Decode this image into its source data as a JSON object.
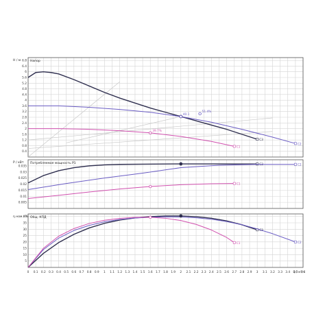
{
  "colors": {
    "c1": "#d04fae",
    "c2": "#6a5cc4",
    "c3": "#2f2f4f",
    "aux": "#c8c8c8",
    "text": "#333333"
  },
  "chart_data": [
    {
      "type": "line",
      "panel": "head",
      "title": "Напор",
      "ylabel": "Н / м",
      "xlim": [
        0,
        3.6
      ],
      "ylim": [
        0,
        7
      ],
      "yticks": [
        0.4,
        0.8,
        1.2,
        1.6,
        2,
        2.4,
        2.8,
        3.2,
        3.6,
        4,
        4.4,
        4.8,
        5.2,
        5.6,
        6,
        6.4,
        6.8
      ],
      "grid": true,
      "series": [
        {
          "name": "C3",
          "color": "#2f2f4f",
          "x": [
            0,
            0.1,
            0.2,
            0.3,
            0.4,
            0.6,
            0.8,
            1.0,
            1.2,
            1.4,
            1.6,
            1.8,
            2.0,
            2.2,
            2.4,
            2.6,
            2.8,
            3.0
          ],
          "y": [
            5.6,
            5.95,
            6.0,
            5.95,
            5.85,
            5.45,
            5.0,
            4.55,
            4.15,
            3.8,
            3.45,
            3.15,
            2.85,
            2.55,
            2.25,
            1.95,
            1.6,
            1.25
          ]
        },
        {
          "name": "C2",
          "color": "#6a5cc4",
          "x": [
            0,
            0.4,
            0.8,
            1.2,
            1.6,
            2.0,
            2.4,
            2.8,
            3.2,
            3.5
          ],
          "y": [
            3.6,
            3.6,
            3.5,
            3.35,
            3.15,
            2.85,
            2.45,
            1.95,
            1.4,
            0.95
          ]
        },
        {
          "name": "C1",
          "color": "#d04fae",
          "x": [
            0,
            0.4,
            0.8,
            1.2,
            1.6,
            2.0,
            2.4,
            2.7
          ],
          "y": [
            2.0,
            2.0,
            1.95,
            1.85,
            1.7,
            1.45,
            1.1,
            0.75
          ]
        }
      ],
      "aux_lines": [
        {
          "x": [
            0.5,
            2.0
          ],
          "y": [
            1.0,
            2.85
          ]
        },
        {
          "x": [
            0,
            3.2
          ],
          "y": [
            1.2,
            2.75
          ]
        },
        {
          "x": [
            0,
            3.2
          ],
          "y": [
            0.6,
            1.8
          ]
        },
        {
          "x": [
            0,
            1.2
          ],
          "y": [
            0,
            5.3
          ]
        }
      ],
      "markers": [
        {
          "x": 2.0,
          "y": 2.85,
          "color": "#2f2f4f",
          "filled": true,
          "label": ""
        },
        {
          "x": 2.0,
          "y": 2.85,
          "color": "#6a5cc4",
          "filled": false,
          "label": "40.1"
        },
        {
          "x": 2.25,
          "y": 3.05,
          "color": "#6a5cc4",
          "filled": false,
          "label": "51.4%"
        },
        {
          "x": 1.6,
          "y": 1.7,
          "color": "#d04fae",
          "filled": false,
          "label": "39.7%"
        }
      ]
    },
    {
      "type": "line",
      "panel": "power",
      "title": "Потребляемая мощность Р1",
      "ylabel": "Р / кВт",
      "xlim": [
        0,
        3.6
      ],
      "ylim": [
        0,
        0.04
      ],
      "yticks": [
        0.005,
        0.01,
        0.015,
        0.02,
        0.025,
        0.03,
        0.035
      ],
      "grid": true,
      "series": [
        {
          "name": "C3",
          "color": "#2f2f4f",
          "x": [
            0,
            0.2,
            0.4,
            0.6,
            0.8,
            1.0,
            1.2,
            1.5,
            2.0,
            2.5,
            3.0
          ],
          "y": [
            0.021,
            0.027,
            0.031,
            0.0335,
            0.035,
            0.0358,
            0.0362,
            0.0364,
            0.0366,
            0.0366,
            0.0365
          ]
        },
        {
          "name": "C2",
          "color": "#6a5cc4",
          "x": [
            0,
            0.5,
            1.0,
            1.5,
            2.0,
            2.5,
            3.0,
            3.5
          ],
          "y": [
            0.0155,
            0.0205,
            0.025,
            0.029,
            0.0335,
            0.0355,
            0.0362,
            0.0362
          ]
        },
        {
          "name": "C1",
          "color": "#d04fae",
          "x": [
            0,
            0.4,
            0.8,
            1.2,
            1.6,
            2.0,
            2.4,
            2.7
          ],
          "y": [
            0.0082,
            0.0108,
            0.0135,
            0.016,
            0.018,
            0.0195,
            0.0203,
            0.0205
          ]
        }
      ],
      "markers": [
        {
          "x": 2.0,
          "y": 0.0366,
          "color": "#2f2f4f",
          "filled": true,
          "label": ""
        },
        {
          "x": 1.6,
          "y": 0.018,
          "color": "#d04fae",
          "filled": false,
          "label": ""
        }
      ]
    },
    {
      "type": "line",
      "panel": "efficiency",
      "title": "Общ. КПД",
      "ylabel": "η ном / %",
      "xlim": [
        0,
        3.6
      ],
      "ylim": [
        0,
        42
      ],
      "yticks": [
        5,
        10,
        15,
        20,
        25,
        30,
        35,
        40
      ],
      "xticks": [
        0,
        0.1,
        0.2,
        0.3,
        0.4,
        0.5,
        0.6,
        0.7,
        0.8,
        0.9,
        1,
        1.1,
        1.2,
        1.3,
        1.4,
        1.5,
        1.6,
        1.7,
        1.8,
        1.9,
        2,
        2.1,
        2.2,
        2.3,
        2.4,
        2.5,
        2.6,
        2.7,
        2.8,
        2.9,
        3,
        3.1,
        3.2,
        3.3,
        3.4,
        3.5,
        3.6
      ],
      "xlabel": "Q / м³/ч",
      "grid": true,
      "series": [
        {
          "name": "C3",
          "color": "#2f2f4f",
          "x": [
            0,
            0.2,
            0.4,
            0.6,
            0.8,
            1.0,
            1.2,
            1.4,
            1.6,
            1.8,
            2.0,
            2.2,
            2.4,
            2.6,
            2.8,
            3.0
          ],
          "y": [
            0,
            11,
            19.5,
            26,
            31,
            34.6,
            37.2,
            38.9,
            39.9,
            40.4,
            40.4,
            39.8,
            38.6,
            36.5,
            33.5,
            29.5
          ]
        },
        {
          "name": "C2",
          "color": "#6a5cc4",
          "x": [
            0,
            0.2,
            0.4,
            0.6,
            0.8,
            1.0,
            1.2,
            1.4,
            1.6,
            1.8,
            2.0,
            2.2,
            2.4,
            2.6,
            2.8,
            3.0,
            3.2,
            3.5
          ],
          "y": [
            0,
            14,
            23,
            29,
            33,
            35.8,
            37.6,
            38.8,
            39.4,
            39.7,
            39.6,
            39.0,
            37.8,
            36.0,
            33.5,
            30.2,
            26.5,
            20
          ]
        },
        {
          "name": "C1",
          "color": "#d04fae",
          "x": [
            0,
            0.2,
            0.4,
            0.6,
            0.8,
            1.0,
            1.2,
            1.4,
            1.6,
            1.8,
            2.0,
            2.2,
            2.4,
            2.6,
            2.7
          ],
          "y": [
            0,
            15,
            24.5,
            30.5,
            34.5,
            37,
            38.5,
            39.3,
            39.4,
            38.6,
            36.8,
            33.8,
            29.4,
            23.5,
            19.5
          ]
        }
      ],
      "markers": [
        {
          "x": 2.0,
          "y": 40.4,
          "color": "#2f2f4f",
          "filled": true,
          "label": ""
        },
        {
          "x": 1.6,
          "y": 39.4,
          "color": "#d04fae",
          "filled": false,
          "label": ""
        }
      ]
    }
  ]
}
